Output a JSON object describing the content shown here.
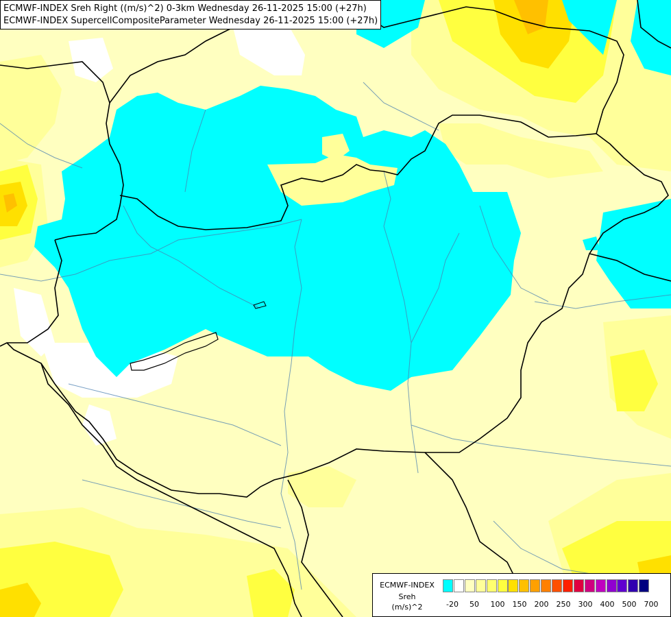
{
  "title": {
    "line1": "ECMWF-INDEX Sreh Right ((m/s)^2) 0-3km Wednesday 26-11-2025 15:00 (+27h)",
    "line2": "ECMWF-INDEX SupercellCompositeParameter Wednesday 26-11-2025 15:00 (+27h)"
  },
  "legend": {
    "title_line1": "ECMWF-INDEX",
    "title_line2": "Sreh",
    "title_line3": "(m/s)^2",
    "colors": [
      "#00ffff",
      "#ffffff",
      "#ffffc0",
      "#ffff9a",
      "#ffff70",
      "#ffff40",
      "#ffe000",
      "#ffc000",
      "#ffa000",
      "#ff8000",
      "#ff5000",
      "#ff2000",
      "#e00040",
      "#d00080",
      "#c000c0",
      "#9000d0",
      "#6000d0",
      "#3000b0",
      "#000080"
    ],
    "ticks": [
      "-20",
      "50",
      "100",
      "150",
      "200",
      "250",
      "300",
      "400",
      "500",
      "700"
    ]
  },
  "palette": {
    "cyan": "#00ffff",
    "pale_yellow": "#ffffc0",
    "light_yellow": "#ffff9a",
    "yellow": "#ffff40",
    "gold": "#ffe000",
    "orange": "#ffc000",
    "white": "#ffffff"
  }
}
